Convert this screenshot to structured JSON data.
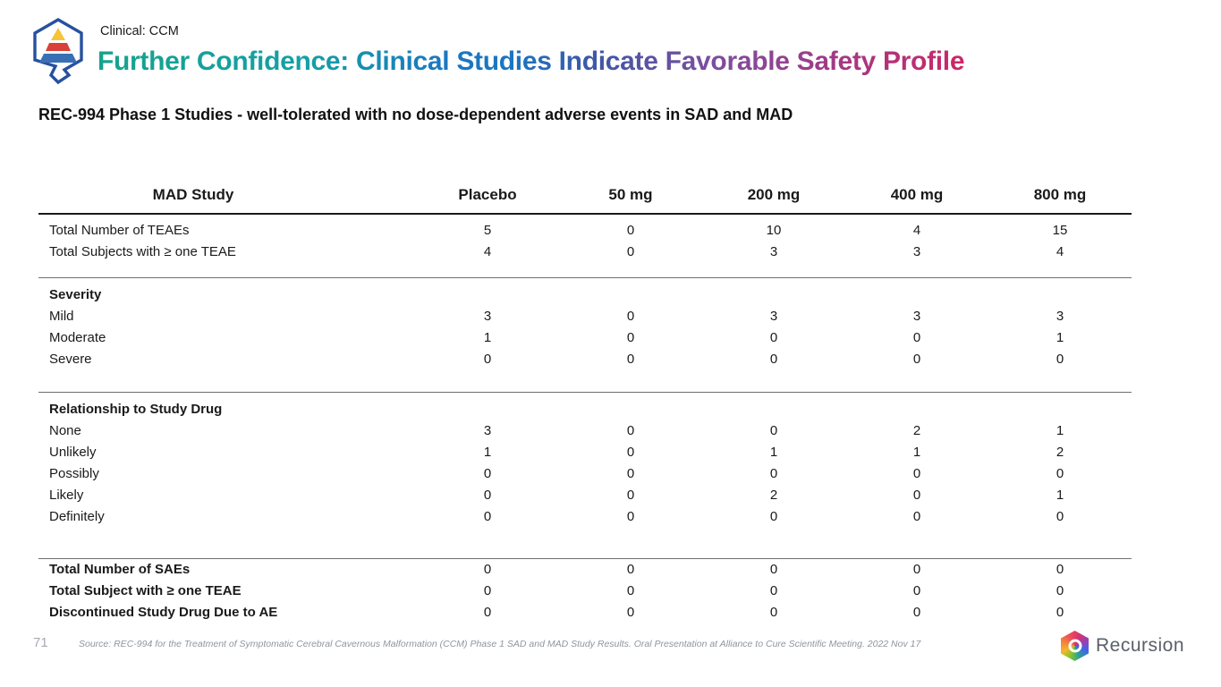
{
  "header": {
    "eyebrow": "Clinical: CCM",
    "title": "Further Confidence: Clinical Studies Indicate Favorable Safety Profile",
    "subtitle": "REC-994 Phase 1 Studies - well-tolerated with no dose-dependent adverse events in SAD and MAD"
  },
  "colors": {
    "title_gradient_start": "#16A28D",
    "title_gradient_mid_blue": "#1B75C0",
    "title_gradient_purple": "#7C4E9D",
    "title_gradient_end": "#CC2767",
    "header_rule": "#1a1a1a",
    "section_rule": "#6f6f6f",
    "footer_gray": "#8f969d"
  },
  "table": {
    "columns": [
      "MAD Study",
      "Placebo",
      "50 mg",
      "200 mg",
      "400 mg",
      "800 mg"
    ],
    "sections": [
      {
        "gap": "sm",
        "rows": [
          {
            "label": "Total Number of TEAEs",
            "values": [
              "5",
              "0",
              "10",
              "4",
              "15"
            ]
          },
          {
            "label": "Total Subjects with ≥ one TEAE",
            "values": [
              "4",
              "0",
              "3",
              "3",
              "4"
            ]
          }
        ]
      },
      {
        "header": "Severity",
        "gap": "md",
        "rows": [
          {
            "label": "Mild",
            "values": [
              "3",
              "0",
              "3",
              "3",
              "3"
            ]
          },
          {
            "label": "Moderate",
            "values": [
              "1",
              "0",
              "0",
              "0",
              "1"
            ]
          },
          {
            "label": "Severe",
            "values": [
              "0",
              "0",
              "0",
              "0",
              "0"
            ]
          }
        ]
      },
      {
        "header": "Relationship to Study Drug",
        "gap": "lg",
        "rows": [
          {
            "label": "None",
            "values": [
              "3",
              "0",
              "0",
              "2",
              "1"
            ]
          },
          {
            "label": "Unlikely",
            "values": [
              "1",
              "0",
              "1",
              "1",
              "2"
            ]
          },
          {
            "label": "Possibly",
            "values": [
              "0",
              "0",
              "0",
              "0",
              "0"
            ]
          },
          {
            "label": "Likely",
            "values": [
              "0",
              "0",
              "2",
              "0",
              "1"
            ]
          },
          {
            "label": "Definitely",
            "values": [
              "0",
              "0",
              "0",
              "0",
              "0"
            ]
          }
        ]
      },
      {
        "rows": [
          {
            "label": "Total Number of SAEs",
            "bold": true,
            "values": [
              "0",
              "0",
              "0",
              "0",
              "0"
            ]
          },
          {
            "label": "Total Subject with ≥ one TEAE",
            "bold": true,
            "values": [
              "0",
              "0",
              "0",
              "0",
              "0"
            ]
          },
          {
            "label": "Discontinued Study Drug Due to AE",
            "bold": true,
            "values": [
              "0",
              "0",
              "0",
              "0",
              "0"
            ]
          }
        ]
      }
    ]
  },
  "footer": {
    "page_number": "71",
    "source": "Source: REC-994 for the Treatment of Symptomatic Cerebral Cavernous Malformation (CCM) Phase 1 SAD and MAD Study Results. Oral Presentation at Alliance to Cure Scientific Meeting. 2022 Nov 17",
    "recursion_wordmark": "Recursion"
  }
}
